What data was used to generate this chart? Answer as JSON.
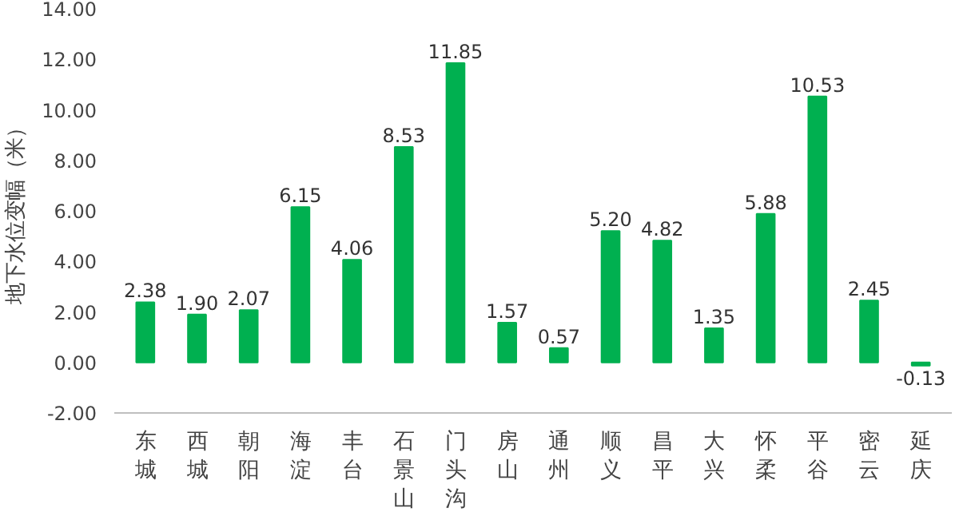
{
  "chart_data": {
    "type": "bar",
    "ylabel": "地下水位变幅（米）",
    "categories": [
      "东城",
      "西城",
      "朝阳",
      "海淀",
      "丰台",
      "石景山",
      "门头沟",
      "房山",
      "通州",
      "顺义",
      "昌平",
      "大兴",
      "怀柔",
      "平谷",
      "密云",
      "延庆"
    ],
    "values": [
      2.38,
      1.9,
      2.07,
      6.15,
      4.06,
      8.53,
      11.85,
      1.57,
      0.57,
      5.2,
      4.82,
      1.35,
      5.88,
      10.53,
      2.45,
      -0.13
    ],
    "value_labels": [
      "2.38",
      "1.90",
      "2.07",
      "6.15",
      "4.06",
      "8.53",
      "11.85",
      "1.57",
      "0.57",
      "5.20",
      "4.82",
      "1.35",
      "5.88",
      "10.53",
      "2.45",
      "-0.13"
    ],
    "color": "#00b050",
    "ylim": [
      -2,
      14
    ],
    "yticks": [
      {
        "value": -2,
        "label": "-2.00"
      },
      {
        "value": 0,
        "label": "0.00"
      },
      {
        "value": 2,
        "label": "2.00"
      },
      {
        "value": 4,
        "label": "4.00"
      },
      {
        "value": 6,
        "label": "6.00"
      },
      {
        "value": 8,
        "label": "8.00"
      },
      {
        "value": 10,
        "label": "10.00"
      },
      {
        "value": 12,
        "label": "12.00"
      },
      {
        "value": 14,
        "label": "14.00"
      }
    ],
    "grid": false
  }
}
